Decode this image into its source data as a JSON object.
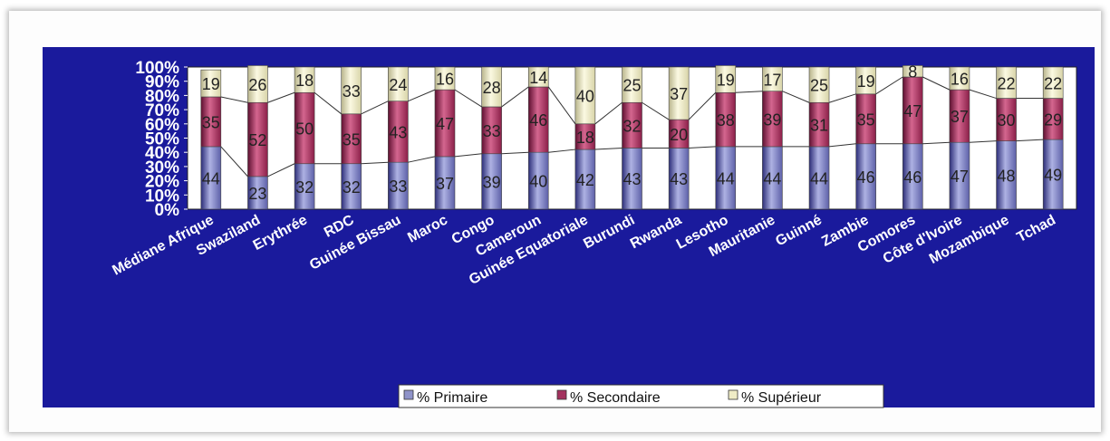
{
  "chart_data": {
    "type": "bar",
    "stacked": true,
    "title": "",
    "xlabel": "",
    "ylabel": "",
    "ylim": [
      0,
      100
    ],
    "y_ticks": [
      "0%",
      "10%",
      "20%",
      "30%",
      "40%",
      "50%",
      "60%",
      "70%",
      "80%",
      "90%",
      "100%"
    ],
    "categories": [
      "Médiane Afrique",
      "Swaziland",
      "Erythrée",
      "RDC",
      "Guinée Bissau",
      "Maroc",
      "Congo",
      "Cameroun",
      "Guinée Equatoriale",
      "Burundi",
      "Rwanda",
      "Lesotho",
      "Mauritanie",
      "Guinné",
      "Zambie",
      "Comores",
      "Côte d'Ivoire",
      "Mozambique",
      "Tchad"
    ],
    "series": [
      {
        "name": "% Primaire",
        "color": "#8f93c9",
        "values": [
          44,
          23,
          32,
          32,
          33,
          37,
          39,
          40,
          42,
          43,
          43,
          44,
          44,
          44,
          46,
          46,
          47,
          48,
          49
        ]
      },
      {
        "name": "% Secondaire",
        "color": "#a3325e",
        "values": [
          35,
          52,
          50,
          35,
          43,
          47,
          33,
          46,
          18,
          32,
          20,
          38,
          39,
          31,
          35,
          47,
          37,
          30,
          29
        ]
      },
      {
        "name": "% Supérieur",
        "color": "#efecc6",
        "values": [
          19,
          26,
          18,
          33,
          24,
          16,
          28,
          14,
          40,
          25,
          37,
          19,
          17,
          25,
          19,
          8,
          16,
          22,
          22
        ]
      }
    ],
    "grid": false,
    "legend_position": "bottom",
    "plot_background": "#ffffff",
    "chart_background": "#1a1a9c"
  }
}
